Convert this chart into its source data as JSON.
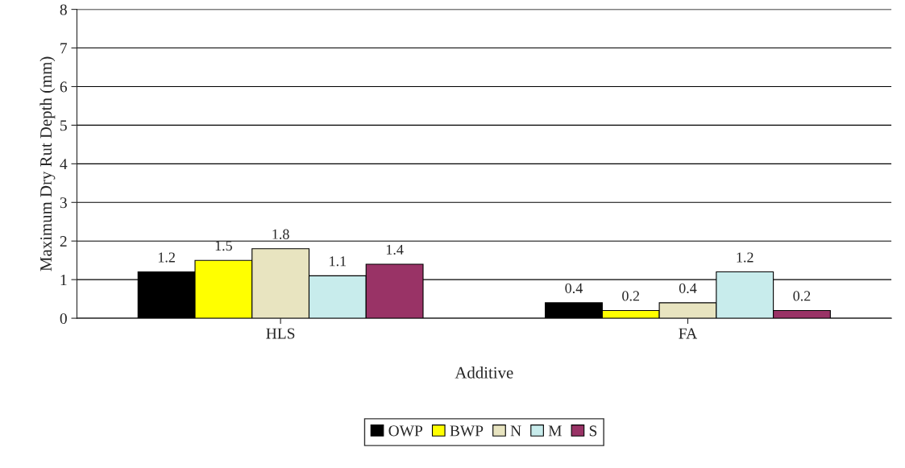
{
  "chart_data": {
    "type": "bar",
    "xlabel": "Additive",
    "ylabel": "Maximum Dry Rut Depth (mm)",
    "categories": [
      "HLS",
      "FA"
    ],
    "series": [
      {
        "name": "OWP",
        "color": "#000000",
        "values": [
          1.2,
          0.4
        ]
      },
      {
        "name": "BWP",
        "color": "#ffff00",
        "values": [
          1.5,
          0.2
        ]
      },
      {
        "name": "N",
        "color": "#e8e4c0",
        "values": [
          1.8,
          0.4
        ]
      },
      {
        "name": "M",
        "color": "#c8ecec",
        "values": [
          1.1,
          1.2
        ]
      },
      {
        "name": "S",
        "color": "#993366",
        "values": [
          1.4,
          0.2
        ]
      }
    ],
    "ylim": [
      0,
      8
    ],
    "yticks": [
      0,
      1,
      2,
      3,
      4,
      5,
      6,
      7,
      8
    ],
    "grid": "y",
    "legend": "bottom",
    "data_labels": true
  }
}
